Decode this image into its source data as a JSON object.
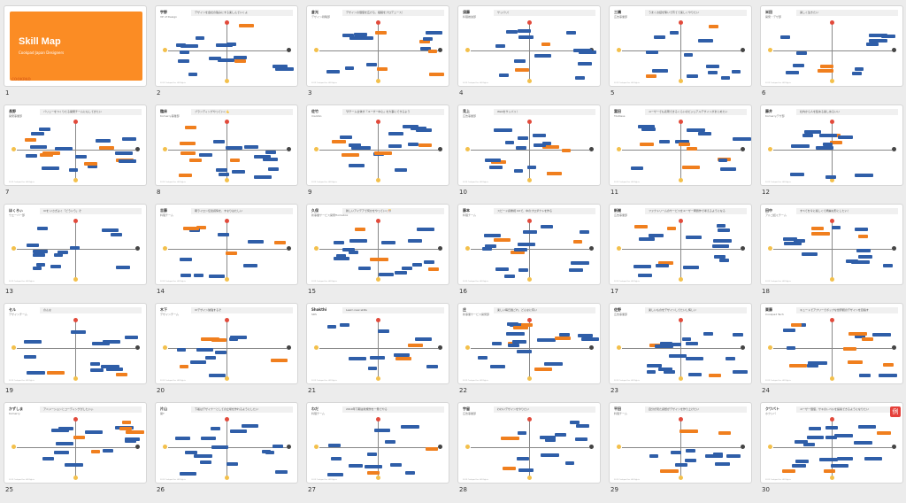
{
  "title_slide": {
    "title": "Skill Map",
    "subtitle": "Cookpad Japan Designers",
    "brand": "COOKPAD"
  },
  "slides": [
    {
      "number": "1"
    },
    {
      "number": "2",
      "name": "宇野",
      "role": "VP of Design",
      "quote": "デザインを会社の強みにする楽しんでいくよ"
    },
    {
      "number": "3",
      "name": "倉光",
      "role": "デザイン戦略部",
      "quote": "デザインの価値を広げる、組織をプロデュース！"
    },
    {
      "number": "4",
      "name": "須藤",
      "role": "料理推進部",
      "quote": "サッパリ！"
    },
    {
      "number": "5",
      "name": "三橋",
      "role": "広告事業部",
      "quote": "うまくお話を繋いで育てて楽しくやりたい"
    },
    {
      "number": "6",
      "name": "米田",
      "role": "開発・デザ部",
      "quote": "楽しく生きたい"
    },
    {
      "number": "7",
      "name": "長野",
      "role": "開発事業部",
      "quote": "バリューをつくりたる開発チームにもしてきたい"
    },
    {
      "number": "8",
      "name": "臨床",
      "role": "Komerry事業部",
      "quote": "ブランディングやっていく💪"
    },
    {
      "number": "9",
      "name": "佐竹",
      "role": "markbo",
      "quote": "🐮チーム全体が「ユーザー中心」を大事にできるよう"
    },
    {
      "number": "10",
      "name": "見上",
      "role": "広告事業部",
      "quote": "Webをサッパリ！"
    },
    {
      "number": "11",
      "name": "富田",
      "role": "TAddess",
      "quote": "ユーザーでも表現できるくらいのビジュアルデザインがまとめたい"
    },
    {
      "number": "12",
      "name": "藤井",
      "role": "Komerryデザ部",
      "quote": "社内から人を集める楽しめるいい"
    },
    {
      "number": "13",
      "name": "ほくろぃ",
      "role": "ウエーバー部",
      "quote": "UIを いさぎよく「どういう」ぞ"
    },
    {
      "number": "14",
      "name": "吉藤",
      "role": "料理チーム",
      "quote": "朝ライロン伝達感情を、すなりはたしい"
    },
    {
      "number": "15",
      "name": "久保",
      "role": "新事業サービス開発Homebox",
      "quote": "新しいアイデアで何かをやっていく🎊"
    },
    {
      "number": "16",
      "name": "藤本",
      "role": "料理チーム",
      "quote": "スピード感重視 UXで、中のプロダクトを作る"
    },
    {
      "number": "17",
      "name": "新開",
      "role": "広告事業部",
      "quote": "ファクトリームのサービスをユーザー問題作で考えるようになる"
    },
    {
      "number": "18",
      "name": "田中",
      "role": "アルゴ話ミチーム",
      "quote": "すべてを今に楽しくて綺麗な形にしたい！"
    },
    {
      "number": "19",
      "name": "セル",
      "role": "デザインチーム",
      "quote": "のんな"
    },
    {
      "number": "20",
      "name": "木下",
      "role": "デザインチーム",
      "quote": "UIデザイン勉強するぞ"
    },
    {
      "number": "21",
      "name": "Shakthi",
      "role": "SRS",
      "quote": "Learn new skills"
    },
    {
      "number": "22",
      "name": "庄",
      "role": "新事業サービス開発部",
      "quote": "楽しい毎日過ごれ、どんなに有い"
    },
    {
      "number": "23",
      "name": "佐野",
      "role": "広告事業部",
      "quote": "楽しいものをデザインしてたいし悔しい"
    },
    {
      "number": "24",
      "name": "栗藤",
      "role": "Cookpad Tech",
      "quote": "キュートでアプリーでポップな世界観のデザインを目指す"
    },
    {
      "number": "25",
      "name": "かずしま",
      "role": "Komerry",
      "quote": "アニメーションとコーディングがしたいぃ"
    },
    {
      "number": "26",
      "name": "片山",
      "role": "開T",
      "quote": "下着はデザイナーとしての立場を作れるようにしたい"
    },
    {
      "number": "27",
      "name": "わだ",
      "role": "料理チーム",
      "quote": "2019年下期は新規作を一発でやる"
    },
    {
      "number": "28",
      "name": "宇留",
      "role": "広告事業部",
      "quote": "わわいデザインをやりたい"
    },
    {
      "number": "29",
      "name": "平田",
      "role": "料理チーム",
      "quote": "自分が見た感想がデザインを作り上げたい"
    },
    {
      "number": "30",
      "name": "クワバト",
      "role": "ホクシバ",
      "quote": "ユーザー価値、サキのレベルを提案できるようになりたい",
      "badge": "例"
    }
  ],
  "footer_text": "2019 Cookpad Inc. All Rights",
  "colors": {
    "orange": "#fb8c24",
    "blue": "#2f5ea8",
    "tag_orange": "#f07f1e"
  }
}
